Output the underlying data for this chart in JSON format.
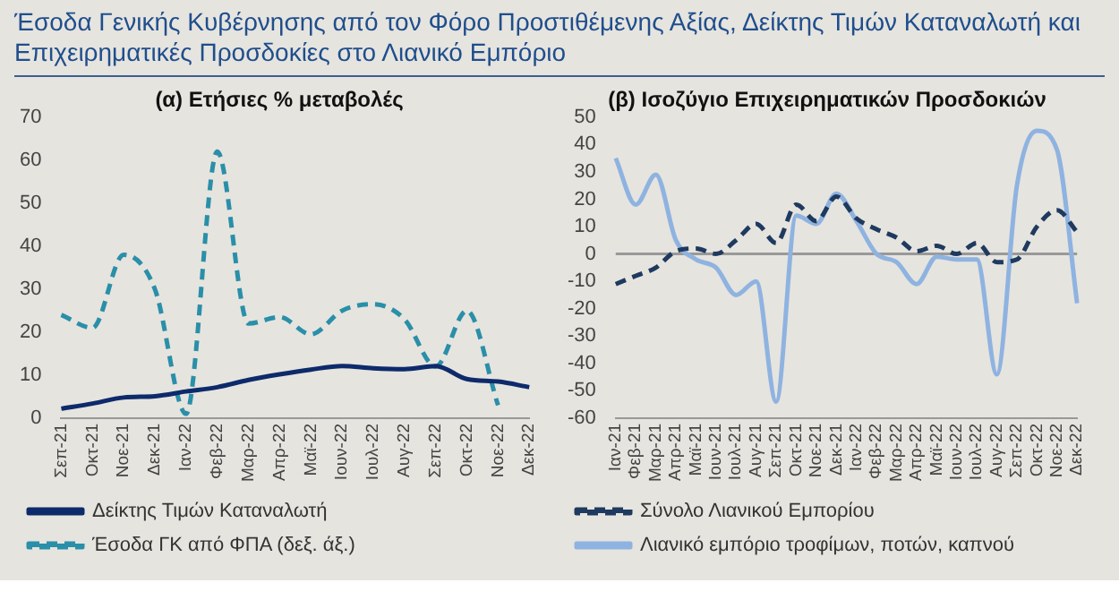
{
  "chart_data": [
    {
      "type": "line",
      "annotations": [
        "Έσοδα Γενικής Κυβέρνησης από τον Φόρο Προστιθέμενης Αξίας, Δείκτης Τιμών Καταναλωτή και Επιχειρηματικές Προσδοκίες στο Λιανικό Εμπόριο"
      ],
      "title": "(α) Ετήσιες % μεταβολές",
      "categories": [
        "Σεπ-21",
        "Οκτ-21",
        "Νοε-21",
        "Δεκ-21",
        "Ιαν-22",
        "Φεβ-22",
        "Μαρ-22",
        "Απρ-22",
        "Μαϊ-22",
        "Ιουν-22",
        "Ιουλ-22",
        "Αυγ-22",
        "Σεπ-22",
        "Οκτ-22",
        "Νοε-22",
        "Δεκ-22"
      ],
      "ylim": [
        0,
        70
      ],
      "yticks": [
        0,
        10,
        20,
        30,
        40,
        50,
        60,
        70
      ],
      "legend": "bottom",
      "series": [
        {
          "name": "Δείκτης Τιμών Καταναλωτή",
          "color": "#0d2a6b",
          "line_style": "solid",
          "values": [
            2.2,
            3.4,
            4.8,
            5.1,
            6.2,
            7.2,
            8.9,
            10.2,
            11.3,
            12.1,
            11.6,
            11.4,
            12.1,
            9.1,
            8.5,
            7.2
          ]
        },
        {
          "name": "Έσοδα ΓΚ από ΦΠΑ (δεξ. άξ.)",
          "color": "#2a8fa8",
          "line_style": "dashed",
          "values": [
            24,
            21,
            38,
            30,
            1,
            62,
            22,
            23.5,
            19.5,
            25,
            26.5,
            23,
            12,
            25,
            3,
            null
          ]
        }
      ]
    },
    {
      "type": "line",
      "title": "(β) Ισοζύγιο Επιχειρηματικών Προσδοκιών",
      "categories": [
        "Ιαν-21",
        "Φεβ-21",
        "Μαρ-21",
        "Απρ-21",
        "Μαϊ-21",
        "Ιουν-21",
        "Ιουλ-21",
        "Αυγ-21",
        "Σεπ-21",
        "Οκτ-21",
        "Νοε-21",
        "Δεκ-21",
        "Ιαν-22",
        "Φεβ-22",
        "Μαρ-22",
        "Απρ-22",
        "Μαϊ-22",
        "Ιουν-22",
        "Ιουλ-22",
        "Αυγ-22",
        "Σεπ-22",
        "Οκτ-22",
        "Νοε-22",
        "Δεκ-22"
      ],
      "ylim": [
        -60,
        50
      ],
      "yticks": [
        -60,
        -50,
        -40,
        -30,
        -20,
        -10,
        0,
        10,
        20,
        30,
        40,
        50
      ],
      "legend": "bottom",
      "ref_lines": [
        {
          "axis": "y",
          "value": 0,
          "color": "#999999"
        }
      ],
      "series": [
        {
          "name": "Σύνολο Λιανικού Εμπορίου",
          "color": "#1f3a5f",
          "line_style": "dashed",
          "values": [
            -11,
            -8,
            -5,
            1,
            2,
            0,
            5,
            11,
            4,
            18,
            12,
            21,
            13,
            9,
            6,
            1,
            3,
            0,
            4,
            -3,
            -2,
            10,
            16,
            8
          ]
        },
        {
          "name": "Λιανικό εμπόριο τροφίμων, ποτών, καπνού",
          "color": "#8fb3e0",
          "line_style": "solid",
          "values": [
            35,
            18,
            29,
            5,
            -2,
            -5,
            -15,
            -10,
            -54,
            14,
            11,
            22,
            12,
            0,
            -3,
            -11,
            -1,
            -2,
            -2,
            -44,
            25,
            45,
            38,
            -18
          ]
        }
      ]
    }
  ]
}
